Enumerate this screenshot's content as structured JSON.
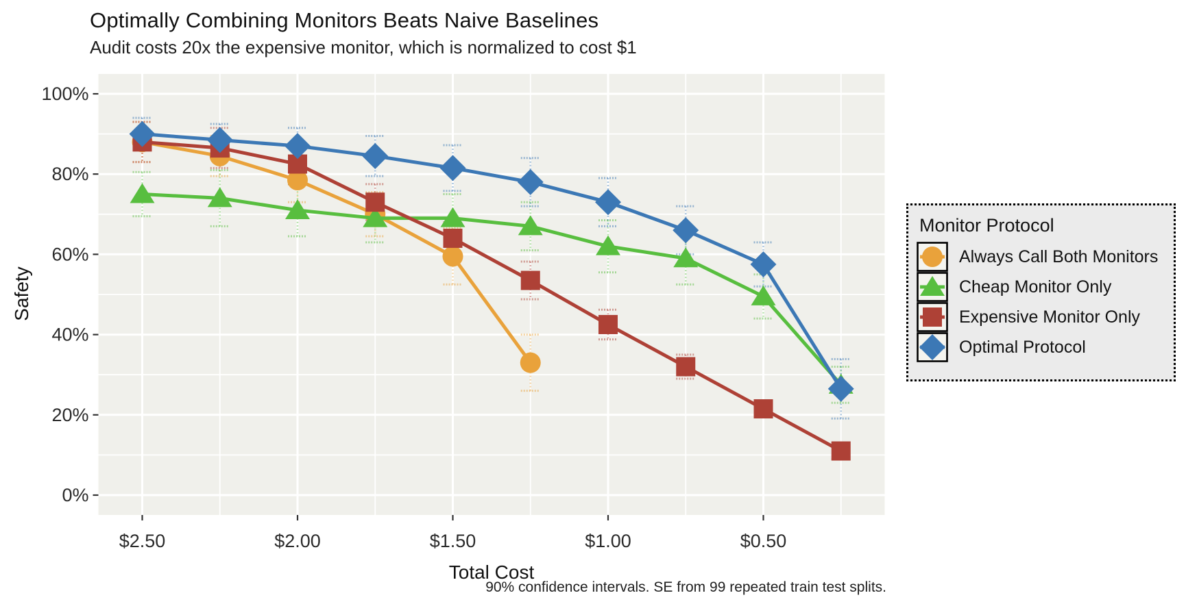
{
  "chart_data": {
    "type": "line",
    "title": "Optimally Combining Monitors Beats Naive Baselines",
    "subtitle": "Audit costs 20x the expensive monitor, which is normalized to cost $1",
    "caption": "90% confidence intervals. SE from 99 repeated train test splits.",
    "xlabel": "Total Cost",
    "ylabel": "Safety",
    "legend_title": "Monitor Protocol",
    "x_axis_reversed": true,
    "x_range": [
      2.5,
      0.25
    ],
    "ylim": [
      0,
      100
    ],
    "grid": "major-and-minor, white on gray panel",
    "legend_position": "right, dotted border box",
    "error_bars": "90% confidence intervals, dotted stems with caps",
    "x_ticks": [
      {
        "label": "$2.50",
        "value": 2.5
      },
      {
        "label": "$2.00",
        "value": 2.0
      },
      {
        "label": "$1.50",
        "value": 1.5
      },
      {
        "label": "$1.00",
        "value": 1.0
      },
      {
        "label": "$0.50",
        "value": 0.5
      }
    ],
    "x_minor_values": [
      2.25,
      1.75,
      1.25,
      0.75,
      0.25
    ],
    "y_ticks": [
      {
        "label": "0%",
        "value": 0
      },
      {
        "label": "20%",
        "value": 20
      },
      {
        "label": "40%",
        "value": 40
      },
      {
        "label": "60%",
        "value": 60
      },
      {
        "label": "80%",
        "value": 80
      },
      {
        "label": "100%",
        "value": 100
      }
    ],
    "y_minor_values": [
      10,
      30,
      50,
      70,
      90
    ],
    "series": [
      {
        "name": "Always Call Both Monitors",
        "marker": "circle",
        "color": "#E9A23B",
        "x": [
          2.5,
          2.25,
          2.0,
          1.75,
          1.5,
          1.25
        ],
        "y": [
          88,
          84.5,
          78.5,
          70,
          59.5,
          33
        ],
        "err": [
          5,
          5,
          5.5,
          5.5,
          7,
          7
        ]
      },
      {
        "name": "Cheap Monitor Only",
        "marker": "triangle",
        "color": "#58BE3F",
        "x": [
          2.5,
          2.25,
          2.0,
          1.75,
          1.5,
          1.25,
          1.0,
          0.75,
          0.5,
          0.25
        ],
        "y": [
          75,
          74,
          71,
          69,
          69,
          67,
          62,
          59,
          49.5,
          27.5
        ],
        "err": [
          5.5,
          7,
          6.5,
          6,
          6,
          6,
          6.5,
          6.5,
          5.5,
          4.5
        ]
      },
      {
        "name": "Expensive Monitor Only",
        "marker": "square",
        "color": "#AE4136",
        "x": [
          2.5,
          2.25,
          2.0,
          1.75,
          1.5,
          1.25,
          1.0,
          0.75,
          0.5,
          0.25
        ],
        "y": [
          88,
          86.5,
          82.5,
          73,
          64,
          53.5,
          42.5,
          32,
          21.5,
          11
        ],
        "err": [
          5,
          5,
          5,
          4.5,
          4,
          4.7,
          3.7,
          3,
          2,
          2
        ]
      },
      {
        "name": "Optimal Protocol",
        "marker": "diamond",
        "color": "#3C78B5",
        "x": [
          2.5,
          2.25,
          2.0,
          1.75,
          1.5,
          1.25,
          1.0,
          0.75,
          0.5,
          0.25
        ],
        "y": [
          90,
          88.5,
          87,
          84.5,
          81.5,
          78,
          73,
          66,
          57.5,
          26.5
        ],
        "err": [
          4,
          4,
          4.5,
          5,
          5.7,
          6,
          6,
          6,
          5.5,
          7.4
        ]
      }
    ],
    "colors": {
      "panel_background": "#F0F0EB",
      "gridline": "#FFFFFF",
      "legend_background": "#EBEBEB",
      "legend_key_background": "#F4F4EF",
      "axis_text": "#2b2b2b",
      "tick_mark": "#333333"
    }
  }
}
